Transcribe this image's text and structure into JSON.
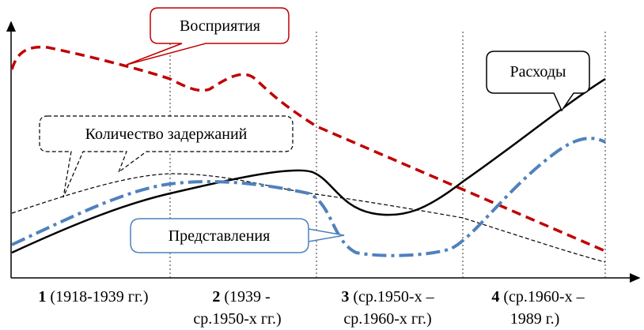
{
  "callouts": {
    "perception": "Восприятия",
    "spending": "Расходы",
    "arrests": "Количество задержаний",
    "representations": "Представления"
  },
  "periods": [
    {
      "number": "1",
      "lines": [
        "(1918-1939 гг.)"
      ]
    },
    {
      "number": "2",
      "lines": [
        "(1939 -",
        "ср.1950-х гг.)"
      ]
    },
    {
      "number": "3",
      "lines": [
        "(ср.1950-х –",
        "ср.1960-х гг.)"
      ]
    },
    {
      "number": "4",
      "lines": [
        "(ср.1960-х –",
        "1989 г.)"
      ]
    }
  ]
}
